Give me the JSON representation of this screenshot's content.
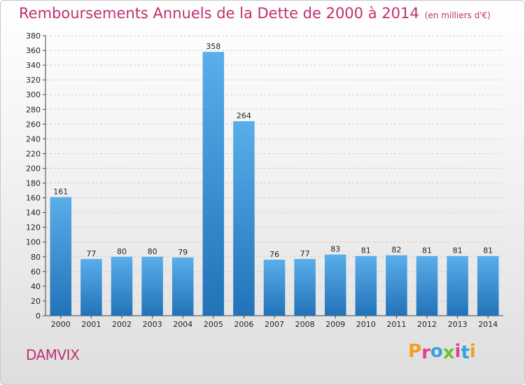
{
  "header": {
    "title": "Remboursements Annuels de la Dette de 2000 à 2014",
    "unit": "(en milliers d'€)"
  },
  "footer": {
    "commune": "DAMVIX",
    "brand_letters": [
      "P",
      "r",
      "o",
      "x",
      "i",
      "t",
      "i"
    ],
    "brand_colors": [
      "#f0a020",
      "#e04090",
      "#3aa0e0",
      "#70c030",
      "#e04090",
      "#3aa0e0",
      "#f0a020"
    ]
  },
  "chart_data": {
    "type": "bar",
    "title": "Remboursements Annuels de la Dette de 2000 à 2014",
    "unit": "(en milliers d'€)",
    "categories": [
      "2000",
      "2001",
      "2002",
      "2003",
      "2004",
      "2005",
      "2006",
      "2007",
      "2008",
      "2009",
      "2010",
      "2011",
      "2012",
      "2013",
      "2014"
    ],
    "values": [
      161,
      77,
      80,
      80,
      79,
      358,
      264,
      76,
      77,
      83,
      81,
      82,
      81,
      81,
      81
    ],
    "ylim": [
      0,
      380
    ],
    "ytick_step": 20,
    "grid": true,
    "bar_color_top": "#5aaeea",
    "bar_color_bottom": "#2272b8",
    "grid_color": "#cfcfcf"
  }
}
